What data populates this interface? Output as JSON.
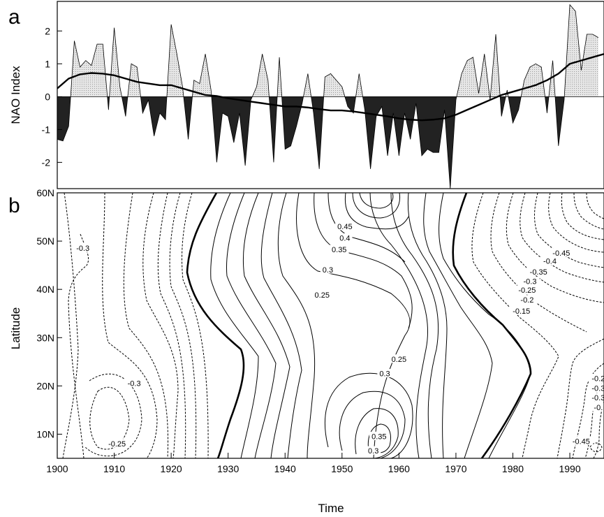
{
  "panel_a": {
    "letter": "a"
  },
  "panel_b": {
    "letter": "b"
  },
  "chart_data": [
    {
      "type": "area",
      "ylabel": "NAO Index",
      "xlim": [
        1900,
        1996
      ],
      "ylim": [
        -2.8,
        2.9
      ],
      "yticks": [
        -2,
        -1,
        0,
        1,
        2
      ],
      "series": [
        {
          "x": [
            1900,
            1901,
            1902,
            1903,
            1904,
            1905,
            1906,
            1907,
            1908,
            1909,
            1910,
            1911,
            1912,
            1913,
            1914,
            1915,
            1916,
            1917,
            1918,
            1919,
            1920,
            1921,
            1922,
            1923,
            1924,
            1925,
            1926,
            1927,
            1928,
            1929,
            1930,
            1931,
            1932,
            1933,
            1934,
            1935,
            1936,
            1937,
            1938,
            1939,
            1940,
            1941,
            1942,
            1943,
            1944,
            1945,
            1946,
            1947,
            1948,
            1949,
            1950,
            1951,
            1952,
            1953,
            1954,
            1955,
            1956,
            1957,
            1958,
            1959,
            1960,
            1961,
            1962,
            1963,
            1964,
            1965,
            1966,
            1967,
            1968,
            1969,
            1970,
            1971,
            1972,
            1973,
            1974,
            1975,
            1976,
            1977,
            1978,
            1979,
            1980,
            1981,
            1982,
            1983,
            1984,
            1985,
            1986,
            1987,
            1988,
            1989,
            1990,
            1991,
            1992,
            1993,
            1994,
            1995
          ],
          "values": [
            -1.3,
            -1.35,
            -0.9,
            1.7,
            0.9,
            1.1,
            0.95,
            1.6,
            1.6,
            -0.4,
            2.1,
            0.3,
            -0.6,
            1.0,
            0.9,
            -0.5,
            -0.1,
            -1.2,
            -0.5,
            -0.7,
            2.2,
            1.3,
            0.3,
            -1.3,
            0.5,
            0.4,
            1.3,
            0.2,
            -2.0,
            -0.5,
            -0.6,
            -1.4,
            -0.5,
            -2.1,
            -0.1,
            0.3,
            1.3,
            0.5,
            -2.0,
            1.2,
            -1.6,
            -1.5,
            -0.9,
            -0.2,
            0.7,
            -0.5,
            -2.2,
            0.6,
            0.7,
            0.5,
            0.3,
            -0.3,
            -0.5,
            0.7,
            -0.4,
            -2.2,
            -0.6,
            -0.3,
            -1.8,
            -0.5,
            -1.8,
            -0.5,
            -1.3,
            -0.2,
            -1.8,
            -1.6,
            -1.7,
            -1.7,
            -0.4,
            -2.8,
            -0.1,
            0.7,
            1.1,
            1.2,
            0.1,
            1.3,
            -0.1,
            1.9,
            -0.6,
            0.2,
            -0.8,
            -0.4,
            0.5,
            0.9,
            1.0,
            0.9,
            -0.5,
            1.1,
            -1.5,
            -0.1,
            2.8,
            2.6,
            0.8,
            1.9,
            1.9,
            1.8
          ]
        },
        {
          "x": [
            1900,
            1902,
            1904,
            1906,
            1908,
            1910,
            1912,
            1914,
            1916,
            1918,
            1920,
            1922,
            1924,
            1926,
            1928,
            1930,
            1932,
            1934,
            1936,
            1938,
            1940,
            1942,
            1944,
            1946,
            1948,
            1950,
            1952,
            1954,
            1956,
            1958,
            1960,
            1962,
            1964,
            1966,
            1968,
            1970,
            1972,
            1974,
            1976,
            1978,
            1980,
            1982,
            1984,
            1986,
            1988,
            1990,
            1992,
            1994,
            1996
          ],
          "values": [
            0.25,
            0.55,
            0.68,
            0.72,
            0.7,
            0.65,
            0.55,
            0.45,
            0.4,
            0.35,
            0.35,
            0.25,
            0.15,
            0.05,
            0.02,
            -0.05,
            -0.1,
            -0.15,
            -0.2,
            -0.25,
            -0.3,
            -0.3,
            -0.33,
            -0.38,
            -0.42,
            -0.42,
            -0.45,
            -0.5,
            -0.55,
            -0.6,
            -0.66,
            -0.7,
            -0.72,
            -0.7,
            -0.66,
            -0.55,
            -0.4,
            -0.25,
            -0.1,
            0.05,
            0.15,
            0.25,
            0.35,
            0.5,
            0.7,
            1.0,
            1.1,
            1.2,
            1.3
          ]
        }
      ]
    },
    {
      "type": "heatmap",
      "xlabel": "Time",
      "ylabel": "Latitude",
      "xlim": [
        1900,
        1996
      ],
      "ylim": [
        5,
        60
      ],
      "xticks": [
        "1900",
        "1910",
        "1920",
        "1930",
        "1940",
        "1950",
        "1960",
        "1970",
        "1980",
        "1990"
      ],
      "yticks": [
        "10N",
        "20N",
        "30N",
        "40N",
        "50N",
        "60N"
      ],
      "contour_labels": [
        {
          "text": "-0.3",
          "x": 1904.5,
          "y": 48.5
        },
        {
          "text": "-0.3",
          "x": 1913.5,
          "y": 20.5
        },
        {
          "text": "-0.25",
          "x": 1910.5,
          "y": 8.0
        },
        {
          "text": "0.45",
          "x": 1950.5,
          "y": 53.0
        },
        {
          "text": "0.4",
          "x": 1950.5,
          "y": 50.6
        },
        {
          "text": "0.35",
          "x": 1949.5,
          "y": 48.2
        },
        {
          "text": "0.3",
          "x": 1947.5,
          "y": 44.0
        },
        {
          "text": "0.25",
          "x": 1946.5,
          "y": 38.8
        },
        {
          "text": "0.25",
          "x": 1960.0,
          "y": 25.5
        },
        {
          "text": "0.3",
          "x": 1957.5,
          "y": 22.5
        },
        {
          "text": "0.35",
          "x": 1956.5,
          "y": 9.5
        },
        {
          "text": "0.3",
          "x": 1955.5,
          "y": 6.5
        },
        {
          "text": "-0.45",
          "x": 1988.5,
          "y": 47.5
        },
        {
          "text": "-0.4",
          "x": 1986.5,
          "y": 45.8
        },
        {
          "text": "-0.35",
          "x": 1984.5,
          "y": 43.6
        },
        {
          "text": "-0.3",
          "x": 1983.0,
          "y": 41.6
        },
        {
          "text": "-0.25",
          "x": 1982.5,
          "y": 39.8
        },
        {
          "text": "-0.2",
          "x": 1982.5,
          "y": 37.8
        },
        {
          "text": "-0.15",
          "x": 1981.5,
          "y": 35.5
        },
        {
          "text": "-0.2",
          "x": 1995.0,
          "y": 21.5
        },
        {
          "text": "-0.3",
          "x": 1995.0,
          "y": 19.5
        },
        {
          "text": "-0.3",
          "x": 1995.0,
          "y": 17.5
        },
        {
          "text": "-0.",
          "x": 1995.0,
          "y": 15.5
        },
        {
          "text": "-0.45",
          "x": 1992.0,
          "y": 8.5
        }
      ]
    }
  ]
}
